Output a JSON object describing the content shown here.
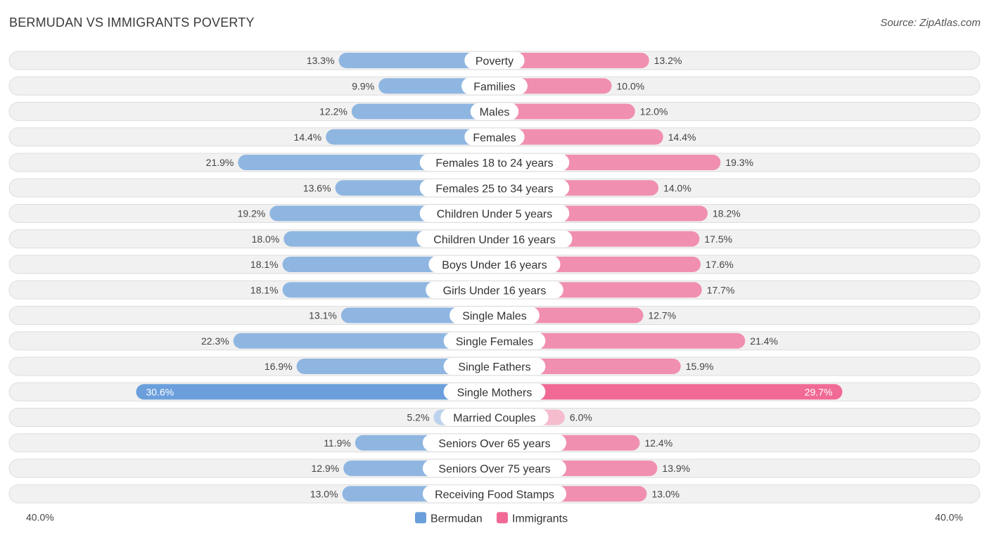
{
  "title": "BERMUDAN VS IMMIGRANTS POVERTY",
  "source": "Source: ZipAtlas.com",
  "colors": {
    "bermudan": "#6a9fdb",
    "bermudan_light": "#a8c7ec",
    "immigrants": "#f06a95",
    "immigrants_light": "#f6a7c0"
  },
  "chart_data": {
    "type": "bar",
    "orientation": "horizontal-diverging",
    "categories": [
      "Poverty",
      "Families",
      "Males",
      "Females",
      "Females 18 to 24 years",
      "Females 25 to 34 years",
      "Children Under 5 years",
      "Children Under 16 years",
      "Boys Under 16 years",
      "Girls Under 16 years",
      "Single Males",
      "Single Females",
      "Single Fathers",
      "Single Mothers",
      "Married Couples",
      "Seniors Over 65 years",
      "Seniors Over 75 years",
      "Receiving Food Stamps"
    ],
    "series": [
      {
        "name": "Bermudan",
        "values": [
          13.3,
          9.9,
          12.2,
          14.4,
          21.9,
          13.6,
          19.2,
          18.0,
          18.1,
          18.1,
          13.1,
          22.3,
          16.9,
          30.6,
          5.2,
          11.9,
          12.9,
          13.0
        ],
        "labels": [
          "13.3%",
          "9.9%",
          "12.2%",
          "14.4%",
          "21.9%",
          "13.6%",
          "19.2%",
          "18.0%",
          "18.1%",
          "18.1%",
          "13.1%",
          "22.3%",
          "16.9%",
          "30.6%",
          "5.2%",
          "11.9%",
          "12.9%",
          "13.0%"
        ]
      },
      {
        "name": "Immigrants",
        "values": [
          13.2,
          10.0,
          12.0,
          14.4,
          19.3,
          14.0,
          18.2,
          17.5,
          17.6,
          17.7,
          12.7,
          21.4,
          15.9,
          29.7,
          6.0,
          12.4,
          13.9,
          13.0
        ],
        "labels": [
          "13.2%",
          "10.0%",
          "12.0%",
          "14.4%",
          "19.3%",
          "14.0%",
          "18.2%",
          "17.5%",
          "17.6%",
          "17.7%",
          "12.7%",
          "21.4%",
          "15.9%",
          "29.7%",
          "6.0%",
          "12.4%",
          "13.9%",
          "13.0%"
        ]
      }
    ],
    "xlim": [
      0,
      40
    ],
    "axis_labels": {
      "left": "40.0%",
      "right": "40.0%"
    },
    "legend": [
      "Bermudan",
      "Immigrants"
    ],
    "legend_position": "bottom-center"
  }
}
